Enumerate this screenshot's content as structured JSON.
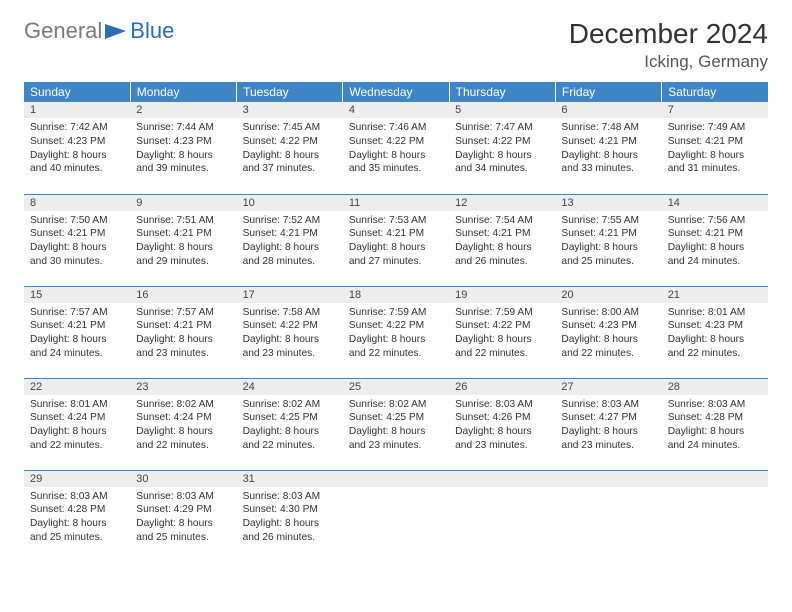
{
  "logo": {
    "part1": "General",
    "part2": "Blue"
  },
  "header": {
    "title": "December 2024",
    "location": "Icking, Germany"
  },
  "colors": {
    "header_bg": "#3d85c6",
    "header_text": "#ffffff",
    "daynum_bg": "#ededed",
    "border": "#3d85c6",
    "logo_gray": "#7a7a7a",
    "logo_blue": "#2b6fb0"
  },
  "weekdays": [
    "Sunday",
    "Monday",
    "Tuesday",
    "Wednesday",
    "Thursday",
    "Friday",
    "Saturday"
  ],
  "days": [
    {
      "n": "1",
      "sr": "7:42 AM",
      "ss": "4:23 PM",
      "dl": "8 hours and 40 minutes."
    },
    {
      "n": "2",
      "sr": "7:44 AM",
      "ss": "4:23 PM",
      "dl": "8 hours and 39 minutes."
    },
    {
      "n": "3",
      "sr": "7:45 AM",
      "ss": "4:22 PM",
      "dl": "8 hours and 37 minutes."
    },
    {
      "n": "4",
      "sr": "7:46 AM",
      "ss": "4:22 PM",
      "dl": "8 hours and 35 minutes."
    },
    {
      "n": "5",
      "sr": "7:47 AM",
      "ss": "4:22 PM",
      "dl": "8 hours and 34 minutes."
    },
    {
      "n": "6",
      "sr": "7:48 AM",
      "ss": "4:21 PM",
      "dl": "8 hours and 33 minutes."
    },
    {
      "n": "7",
      "sr": "7:49 AM",
      "ss": "4:21 PM",
      "dl": "8 hours and 31 minutes."
    },
    {
      "n": "8",
      "sr": "7:50 AM",
      "ss": "4:21 PM",
      "dl": "8 hours and 30 minutes."
    },
    {
      "n": "9",
      "sr": "7:51 AM",
      "ss": "4:21 PM",
      "dl": "8 hours and 29 minutes."
    },
    {
      "n": "10",
      "sr": "7:52 AM",
      "ss": "4:21 PM",
      "dl": "8 hours and 28 minutes."
    },
    {
      "n": "11",
      "sr": "7:53 AM",
      "ss": "4:21 PM",
      "dl": "8 hours and 27 minutes."
    },
    {
      "n": "12",
      "sr": "7:54 AM",
      "ss": "4:21 PM",
      "dl": "8 hours and 26 minutes."
    },
    {
      "n": "13",
      "sr": "7:55 AM",
      "ss": "4:21 PM",
      "dl": "8 hours and 25 minutes."
    },
    {
      "n": "14",
      "sr": "7:56 AM",
      "ss": "4:21 PM",
      "dl": "8 hours and 24 minutes."
    },
    {
      "n": "15",
      "sr": "7:57 AM",
      "ss": "4:21 PM",
      "dl": "8 hours and 24 minutes."
    },
    {
      "n": "16",
      "sr": "7:57 AM",
      "ss": "4:21 PM",
      "dl": "8 hours and 23 minutes."
    },
    {
      "n": "17",
      "sr": "7:58 AM",
      "ss": "4:22 PM",
      "dl": "8 hours and 23 minutes."
    },
    {
      "n": "18",
      "sr": "7:59 AM",
      "ss": "4:22 PM",
      "dl": "8 hours and 22 minutes."
    },
    {
      "n": "19",
      "sr": "7:59 AM",
      "ss": "4:22 PM",
      "dl": "8 hours and 22 minutes."
    },
    {
      "n": "20",
      "sr": "8:00 AM",
      "ss": "4:23 PM",
      "dl": "8 hours and 22 minutes."
    },
    {
      "n": "21",
      "sr": "8:01 AM",
      "ss": "4:23 PM",
      "dl": "8 hours and 22 minutes."
    },
    {
      "n": "22",
      "sr": "8:01 AM",
      "ss": "4:24 PM",
      "dl": "8 hours and 22 minutes."
    },
    {
      "n": "23",
      "sr": "8:02 AM",
      "ss": "4:24 PM",
      "dl": "8 hours and 22 minutes."
    },
    {
      "n": "24",
      "sr": "8:02 AM",
      "ss": "4:25 PM",
      "dl": "8 hours and 22 minutes."
    },
    {
      "n": "25",
      "sr": "8:02 AM",
      "ss": "4:25 PM",
      "dl": "8 hours and 23 minutes."
    },
    {
      "n": "26",
      "sr": "8:03 AM",
      "ss": "4:26 PM",
      "dl": "8 hours and 23 minutes."
    },
    {
      "n": "27",
      "sr": "8:03 AM",
      "ss": "4:27 PM",
      "dl": "8 hours and 23 minutes."
    },
    {
      "n": "28",
      "sr": "8:03 AM",
      "ss": "4:28 PM",
      "dl": "8 hours and 24 minutes."
    },
    {
      "n": "29",
      "sr": "8:03 AM",
      "ss": "4:28 PM",
      "dl": "8 hours and 25 minutes."
    },
    {
      "n": "30",
      "sr": "8:03 AM",
      "ss": "4:29 PM",
      "dl": "8 hours and 25 minutes."
    },
    {
      "n": "31",
      "sr": "8:03 AM",
      "ss": "4:30 PM",
      "dl": "8 hours and 26 minutes."
    }
  ],
  "labels": {
    "sunrise": "Sunrise:",
    "sunset": "Sunset:",
    "daylight": "Daylight:"
  },
  "layout": {
    "start_weekday": 0,
    "total_cells": 35
  }
}
